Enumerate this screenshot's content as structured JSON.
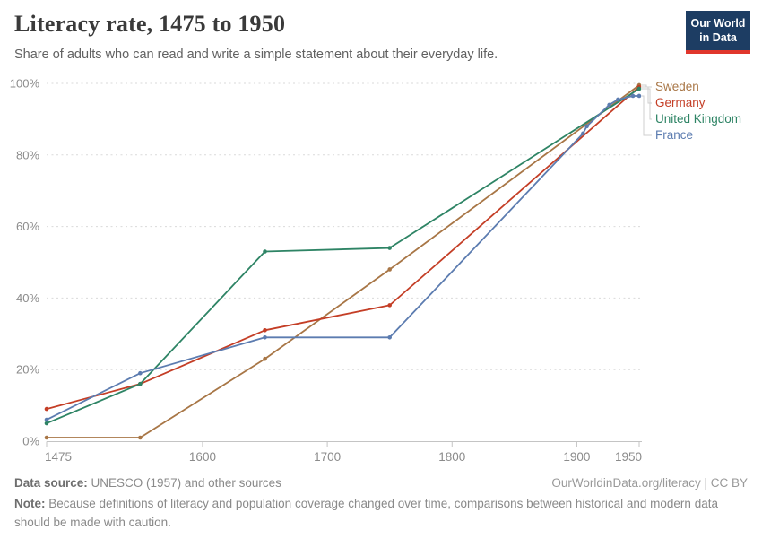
{
  "chart_data": {
    "type": "line",
    "title": "Literacy rate, 1475 to 1950",
    "subtitle": "Share of adults who can read and write a simple statement about their everyday life.",
    "xlim": [
      1475,
      1950
    ],
    "ylim": [
      0,
      100
    ],
    "x_ticks": [
      1475,
      1600,
      1700,
      1800,
      1900,
      1950
    ],
    "y_ticks": [
      0,
      20,
      40,
      60,
      80,
      100
    ],
    "y_tick_suffix": "%",
    "grid": "horizontal-dashed",
    "legend_position": "right-of-line-ends",
    "series": [
      {
        "name": "Sweden",
        "color": "#A87646",
        "points": [
          [
            1475,
            1
          ],
          [
            1550,
            1
          ],
          [
            1650,
            23
          ],
          [
            1750,
            48
          ],
          [
            1950,
            99.5
          ]
        ]
      },
      {
        "name": "Germany",
        "color": "#C43E26",
        "points": [
          [
            1475,
            9
          ],
          [
            1550,
            16
          ],
          [
            1650,
            31
          ],
          [
            1750,
            38
          ],
          [
            1950,
            99
          ]
        ]
      },
      {
        "name": "United Kingdom",
        "color": "#2E8465",
        "points": [
          [
            1475,
            5
          ],
          [
            1550,
            16
          ],
          [
            1650,
            53
          ],
          [
            1750,
            54
          ],
          [
            1950,
            98.5
          ]
        ]
      },
      {
        "name": "France",
        "color": "#5C7CB0",
        "points": [
          [
            1475,
            6
          ],
          [
            1550,
            19
          ],
          [
            1650,
            29
          ],
          [
            1750,
            29
          ],
          [
            1905,
            86
          ],
          [
            1908,
            88
          ],
          [
            1926,
            94
          ],
          [
            1933,
            95.5
          ],
          [
            1945,
            96.5
          ],
          [
            1950,
            96.5
          ]
        ]
      }
    ]
  },
  "logo": {
    "line1": "Our World",
    "line2": "in Data"
  },
  "footer": {
    "source_label": "Data source:",
    "source_text": "UNESCO (1957) and other sources",
    "attribution": "OurWorldinData.org/literacy | CC BY",
    "note_label": "Note:",
    "note_text": "Because definitions of literacy and population coverage changed over time, comparisons between historical and modern data should be made with caution."
  },
  "colors": {
    "logo_bg": "#1D3D63",
    "logo_accent": "#E0362C",
    "grid": "#DADADA",
    "axis": "#C4C4C4",
    "tick_label": "#8B8B8B"
  }
}
